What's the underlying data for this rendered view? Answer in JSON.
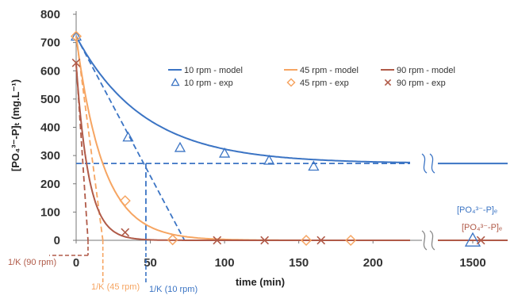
{
  "chart_data": {
    "type": "line",
    "xlabel": "time (min)",
    "ylabel": "[PO₄³⁻-P]ₜ (mg.L⁻¹)",
    "ylim": [
      0,
      800
    ],
    "y_ticks": [
      "0",
      "100",
      "200",
      "300",
      "400",
      "500",
      "600",
      "700",
      "800"
    ],
    "x_main_range": [
      0,
      225
    ],
    "x_ticks": [
      "0",
      "50",
      "100",
      "150",
      "200",
      "1500"
    ],
    "x_break": true,
    "tail_time": 1500,
    "grid": false,
    "legend_position": "top-right",
    "colors": {
      "rpm10": "#3b74c4",
      "rpm45": "#f6a562",
      "rpm90": "#b05a48"
    },
    "series": [
      {
        "name": "10 rpm - model",
        "kind": "model",
        "color_key": "rpm10",
        "c0": 722,
        "ce": 272,
        "k": 0.0218,
        "end": 1650
      },
      {
        "name": "45 rpm - model",
        "kind": "model",
        "color_key": "rpm45",
        "c0": 722,
        "ce": 0,
        "k": 0.0545,
        "end": 1650
      },
      {
        "name": "90 rpm - model",
        "kind": "model",
        "color_key": "rpm90",
        "c0": 622,
        "ce": 0,
        "k": 0.118,
        "end": 1650
      },
      {
        "name": "10 rpm - exp",
        "kind": "exp",
        "marker": "triangle",
        "color_key": "rpm10",
        "x": [
          0,
          35,
          70,
          100,
          130,
          160,
          1500
        ],
        "y": [
          722,
          365,
          328,
          308,
          283,
          262,
          0
        ]
      },
      {
        "name": "45 rpm - exp",
        "kind": "exp",
        "marker": "diamond",
        "color_key": "rpm45",
        "x": [
          0,
          33,
          65,
          155,
          185
        ],
        "y": [
          722,
          140,
          2,
          0,
          0
        ]
      },
      {
        "name": "90 rpm - exp",
        "kind": "exp",
        "marker": "x",
        "color_key": "rpm90",
        "x": [
          0,
          33,
          95,
          127,
          165,
          1520
        ],
        "y": [
          628,
          28,
          0,
          0,
          0,
          0
        ]
      }
    ],
    "reference_lines": [
      {
        "kind": "tangent",
        "color_key": "rpm10",
        "from": [
          0,
          722
        ],
        "to": [
          73,
          0
        ]
      },
      {
        "kind": "horizontal",
        "color_key": "rpm10",
        "y": 272,
        "x_from": 0,
        "x_to": 225
      },
      {
        "kind": "vertical",
        "color_key": "rpm10",
        "x": 47,
        "y_from": 272,
        "y_to": 0
      },
      {
        "kind": "tangent",
        "color_key": "rpm45",
        "from": [
          0,
          722
        ],
        "to": [
          18,
          0
        ]
      },
      {
        "kind": "tangent",
        "color_key": "rpm90",
        "from": [
          0,
          628
        ],
        "to": [
          8,
          0
        ]
      }
    ],
    "annotations": {
      "ce_10": "[PO₄³⁻-P]ₑ",
      "ce_0": "[PO₄³⁻-P]ₑ",
      "k90": "1/K (90 rpm)",
      "k45": "1/K (45 rpm)",
      "k10": "1/K (10 rpm)"
    }
  }
}
